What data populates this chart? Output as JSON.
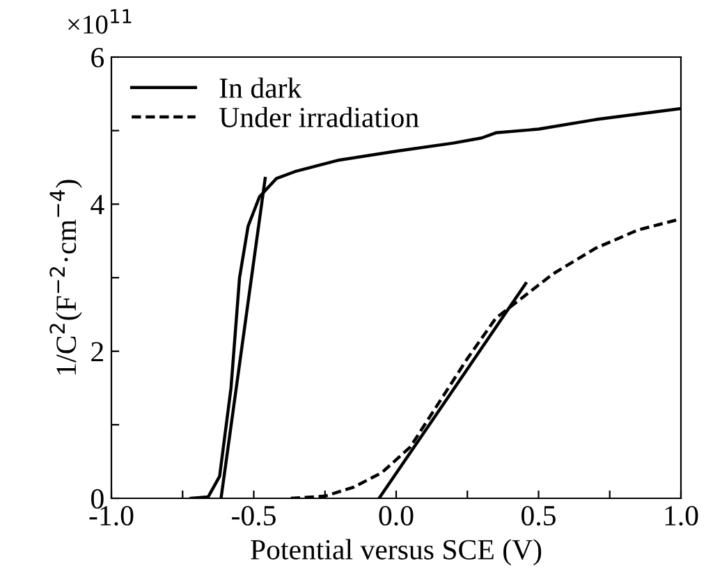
{
  "chart_data": {
    "type": "line",
    "xlabel": "Potential versus SCE (V)",
    "ylabel": "1/C$^{2}$(F$^{−2}$·cm$^{−4}$)",
    "annotations": [
      "×10$^{11}$"
    ],
    "xlim": [
      -1.0,
      1.0
    ],
    "ylim": [
      0,
      6
    ],
    "xticks": [
      {
        "value": -1.0,
        "label": "-1.0"
      },
      {
        "value": -0.75,
        "label": null
      },
      {
        "value": -0.5,
        "label": "-0.5"
      },
      {
        "value": -0.25,
        "label": null
      },
      {
        "value": 0.0,
        "label": "0.0"
      },
      {
        "value": 0.25,
        "label": null
      },
      {
        "value": 0.5,
        "label": "0.5"
      },
      {
        "value": 0.75,
        "label": null
      },
      {
        "value": 1.0,
        "label": "1.0"
      }
    ],
    "yticks": [
      0,
      {
        "value": 1,
        "label": null
      },
      2,
      {
        "value": 3,
        "label": null
      },
      4,
      {
        "value": 5,
        "label": null
      },
      6
    ],
    "grid": false,
    "legend": "top left",
    "marker": "none",
    "series": [
      {
        "name": "In dark",
        "color": "#000000",
        "line_style": "solid",
        "x": [
          -0.72,
          -0.66,
          -0.62,
          -0.58,
          -0.55,
          -0.52,
          -0.48,
          -0.42,
          -0.35,
          -0.2,
          0.0,
          0.2,
          0.3,
          0.35,
          0.5,
          0.7,
          1.0
        ],
        "values": [
          0,
          0.02,
          0.3,
          1.5,
          3.0,
          3.7,
          4.1,
          4.35,
          4.45,
          4.6,
          4.72,
          4.83,
          4.9,
          4.97,
          5.02,
          5.15,
          5.3
        ]
      },
      {
        "name": "Under irradiation",
        "color": "#000000",
        "line_style": "dashed",
        "x": [
          -0.37,
          -0.25,
          -0.15,
          -0.05,
          0.05,
          0.15,
          0.25,
          0.35,
          0.45,
          0.55,
          0.7,
          0.85,
          1.0
        ],
        "values": [
          0,
          0.03,
          0.15,
          0.35,
          0.7,
          1.3,
          1.9,
          2.45,
          2.75,
          3.05,
          3.4,
          3.65,
          3.8
        ]
      },
      {
        "color": "#000000",
        "line_style": "solid",
        "x": [
          -0.615,
          -0.46
        ],
        "values": [
          0,
          4.35
        ]
      },
      {
        "color": "#000000",
        "line_style": "solid",
        "x": [
          -0.06,
          0.455
        ],
        "values": [
          0,
          2.92
        ]
      }
    ]
  }
}
